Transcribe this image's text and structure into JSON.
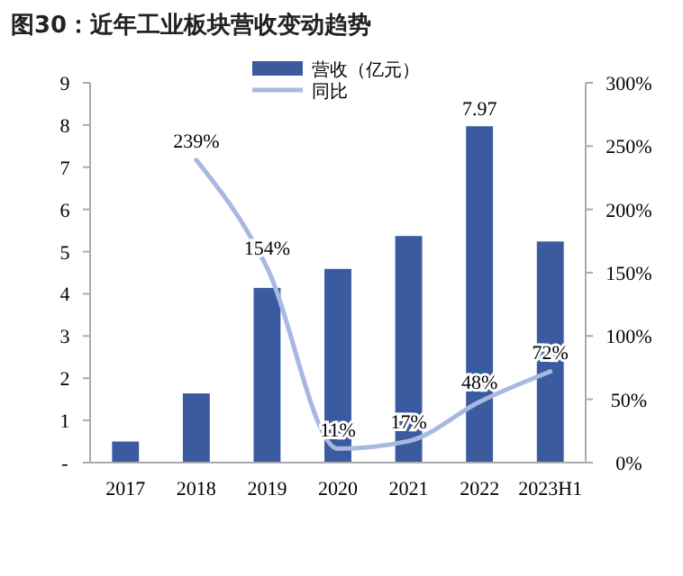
{
  "chart_data": {
    "type": "bar",
    "title": "图30：近年工业板块营收变动趋势",
    "categories": [
      "2017",
      "2018",
      "2019",
      "2020",
      "2021",
      "2022",
      "2023H1"
    ],
    "series": [
      {
        "name": "营收（亿元）",
        "color": "#3a5ba0",
        "values": [
          0.5,
          1.64,
          4.14,
          4.59,
          5.37,
          7.97,
          5.24
        ],
        "value_labels": [
          null,
          null,
          null,
          null,
          null,
          "7.97",
          null
        ]
      },
      {
        "name": "同比",
        "type": "line",
        "axis": "y2",
        "color": "#a9b8e0",
        "values": [
          null,
          239,
          154,
          11,
          17,
          48,
          72
        ],
        "value_labels": [
          null,
          "239%",
          "154%",
          "11%",
          "17%",
          "48%",
          "72%"
        ]
      }
    ],
    "ylim": [
      0,
      9
    ],
    "yticks": [
      {
        "value": 0,
        "label": "-"
      },
      1,
      2,
      3,
      4,
      5,
      6,
      7,
      8,
      9
    ],
    "y2lim": [
      0,
      300
    ],
    "y2ticks": [
      {
        "value": 0,
        "label": "0%"
      },
      {
        "value": 50,
        "label": "50%"
      },
      {
        "value": 100,
        "label": "100%"
      },
      {
        "value": 150,
        "label": "150%"
      },
      {
        "value": 200,
        "label": "200%"
      },
      {
        "value": 250,
        "label": "250%"
      },
      {
        "value": 300,
        "label": "300%"
      }
    ],
    "legend": "top",
    "grid": false
  }
}
